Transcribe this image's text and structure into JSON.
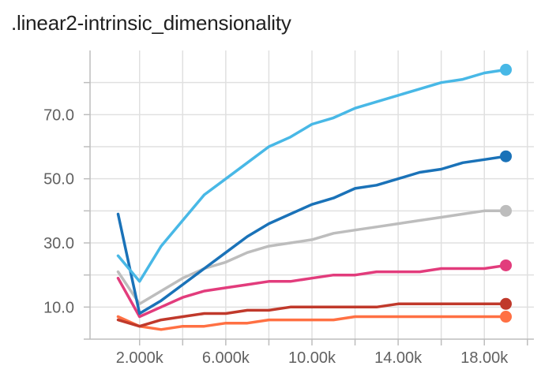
{
  "chart_data": {
    "type": "line",
    "title": ".linear2-intrinsic_dimensionality",
    "xlabel": "",
    "ylabel": "",
    "xlim": [
      -300,
      20300
    ],
    "ylim": [
      0,
      90
    ],
    "grid": true,
    "x_ticks": [
      2000,
      4000,
      6000,
      8000,
      10000,
      12000,
      14000,
      16000,
      18000,
      20000
    ],
    "x_tick_labels": [
      "2.000k",
      "",
      "6.000k",
      "",
      "10.00k",
      "",
      "14.00k",
      "",
      "18.00k",
      ""
    ],
    "y_ticks": [
      0,
      10,
      20,
      30,
      40,
      50,
      60,
      70,
      80
    ],
    "y_tick_labels": [
      "",
      "10.0",
      "",
      "30.0",
      "",
      "50.0",
      "",
      "70.0",
      ""
    ],
    "x": [
      1000,
      2000,
      3000,
      4000,
      5000,
      6000,
      7000,
      8000,
      9000,
      10000,
      11000,
      12000,
      13000,
      14000,
      15000,
      16000,
      17000,
      18000,
      19000
    ],
    "series": [
      {
        "color": "#48b8e6",
        "values": [
          26,
          18,
          29,
          37,
          45,
          50,
          55,
          60,
          63,
          67,
          69,
          72,
          74,
          76,
          78,
          80,
          81,
          83,
          84
        ]
      },
      {
        "color": "#1a72b8",
        "values": [
          39,
          8,
          12,
          17,
          22,
          27,
          32,
          36,
          39,
          42,
          44,
          47,
          48,
          50,
          52,
          53,
          55,
          56,
          57
        ]
      },
      {
        "color": "#bdbdbd",
        "values": [
          21,
          11,
          15,
          19,
          22,
          24,
          27,
          29,
          30,
          31,
          33,
          34,
          35,
          36,
          37,
          38,
          39,
          40,
          40
        ]
      },
      {
        "color": "#e23c7c",
        "values": [
          19,
          7,
          10,
          13,
          15,
          16,
          17,
          18,
          18,
          19,
          20,
          20,
          21,
          21,
          21,
          22,
          22,
          22,
          23
        ]
      },
      {
        "color": "#c0392b",
        "values": [
          6,
          4,
          6,
          7,
          8,
          8,
          9,
          9,
          10,
          10,
          10,
          10,
          10,
          11,
          11,
          11,
          11,
          11,
          11
        ]
      },
      {
        "color": "#ff7043",
        "values": [
          7,
          4,
          3,
          4,
          4,
          5,
          5,
          6,
          6,
          6,
          6,
          7,
          7,
          7,
          7,
          7,
          7,
          7,
          7
        ]
      }
    ]
  }
}
